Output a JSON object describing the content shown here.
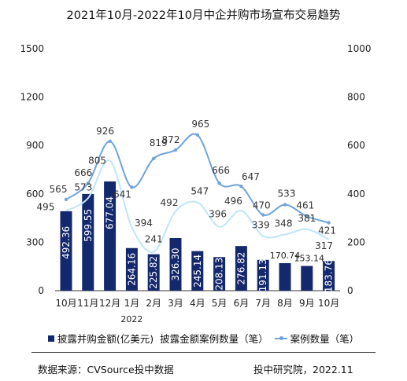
{
  "chart_data": {
    "type": "bar",
    "title": "2021年10月-2022年10月中企并购市场宣布交易趋势",
    "categories": [
      "10月",
      "11月",
      "12月",
      "1月",
      "2月",
      "3月",
      "4月",
      "5月",
      "6月",
      "7月",
      "8月",
      "9月",
      "10月"
    ],
    "year_label": "2022",
    "y_left": {
      "min": 0,
      "max": 1500,
      "ticks": [
        0,
        300,
        600,
        900,
        1200,
        1500
      ]
    },
    "y_right": {
      "min": 0,
      "max": 1000,
      "ticks": [
        0,
        200,
        400,
        600,
        800,
        1000
      ]
    },
    "series": [
      {
        "name": "披露并购金额(亿美元)",
        "type": "bar",
        "axis": "left",
        "color": "#14286e",
        "values": [
          492.36,
          599.55,
          677.04,
          264.16,
          225.82,
          326.3,
          245.14,
          208.13,
          276.82,
          191.13,
          170.74,
          153.14,
          183.76
        ],
        "labels": [
          "492.36",
          "599.55",
          "677.04",
          "264.16",
          "225.82",
          "326.30",
          "245.14",
          "208.13",
          "276.82",
          "191.13",
          "170.74",
          "153.14",
          "183.76"
        ]
      },
      {
        "name": "披露金额案例数量（笔）",
        "type": "line",
        "axis": "left",
        "color": "#bfe6f7",
        "values": [
          495,
          573,
          805,
          394,
          241,
          492,
          547,
          396,
          496,
          339,
          348,
          381,
          317
        ]
      },
      {
        "name": "案例数量（笔）",
        "type": "line",
        "axis": "left",
        "color": "#6fa3dd",
        "values": [
          565,
          666,
          926,
          641,
          819,
          872,
          965,
          666,
          647,
          470,
          533,
          461,
          421
        ]
      }
    ],
    "legend_position": "bottom",
    "grid": false
  },
  "footer": {
    "source": "数据来源：CVSource投中数据",
    "credit": "投中研究院，2022.11"
  },
  "colors": {
    "bar": "#14286e",
    "light_line": "#bfe6f7",
    "dark_line": "#6fa3dd"
  }
}
